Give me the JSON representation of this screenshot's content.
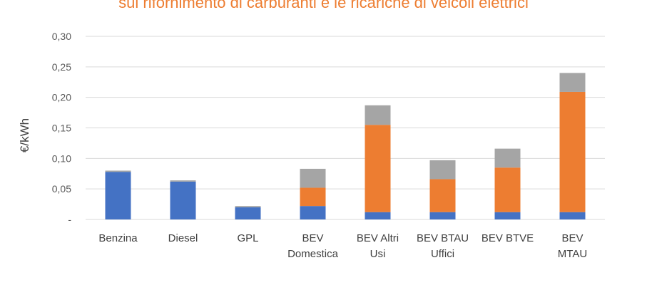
{
  "chart_data": {
    "type": "bar",
    "stacked": true,
    "title": "sul rifornimento di carburanti e le ricariche di veicoli elettrici",
    "ylabel": "€/kWh",
    "ylim": [
      0,
      0.3
    ],
    "yticks": [
      "-",
      "0,05",
      "0,10",
      "0,15",
      "0,20",
      "0,25",
      "0,30"
    ],
    "ytick_values": [
      0,
      0.05,
      0.1,
      0.15,
      0.2,
      0.25,
      0.3
    ],
    "grid": true,
    "categories": [
      [
        "Benzina"
      ],
      [
        "Diesel"
      ],
      [
        "GPL"
      ],
      [
        "BEV",
        "Domestica"
      ],
      [
        "BEV Altri",
        "Usi"
      ],
      [
        "BEV BTAU",
        "Uffici"
      ],
      [
        "BEV BTVE"
      ],
      [
        "BEV",
        "MTAU"
      ]
    ],
    "series": [
      {
        "color": "#4472C4",
        "values": [
          0.078,
          0.062,
          0.02,
          0.022,
          0.012,
          0.012,
          0.012,
          0.012
        ]
      },
      {
        "color": "#ED7D31",
        "values": [
          0,
          0,
          0,
          0.03,
          0.143,
          0.054,
          0.073,
          0.197
        ]
      },
      {
        "color": "#A5A5A5",
        "values": [
          0.002,
          0.002,
          0.002,
          0.031,
          0.032,
          0.031,
          0.031,
          0.031
        ]
      }
    ]
  }
}
